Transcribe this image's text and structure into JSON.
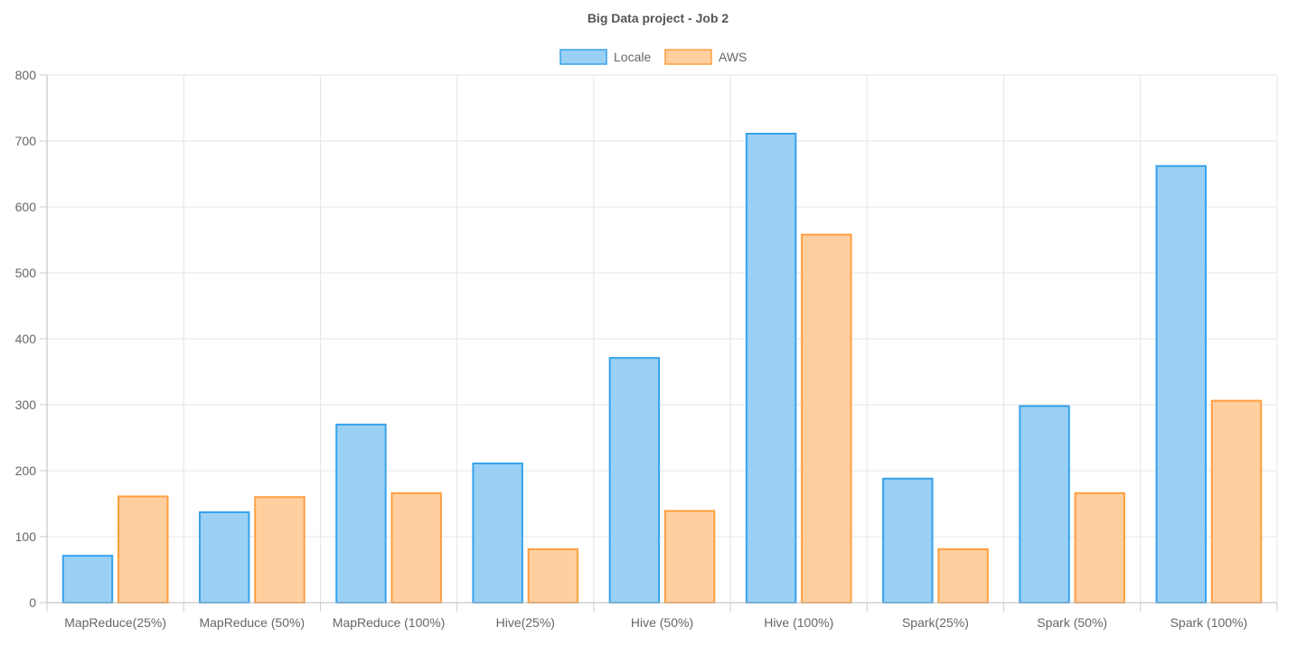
{
  "chart_data": {
    "type": "bar",
    "title": "Big Data project - Job 2",
    "categories": [
      "MapReduce(25%)",
      "MapReduce (50%)",
      "MapReduce (100%)",
      "Hive(25%)",
      "Hive (50%)",
      "Hive (100%)",
      "Spark(25%)",
      "Spark (50%)",
      "Spark (100%)"
    ],
    "series": [
      {
        "name": "Locale",
        "values": [
          71,
          137,
          270,
          211,
          371,
          711,
          188,
          298,
          662
        ],
        "fill": "#9bd0f5",
        "stroke": "#36a2eb"
      },
      {
        "name": "AWS",
        "values": [
          161,
          160,
          166,
          81,
          139,
          558,
          81,
          166,
          306
        ],
        "fill": "#ffcf9f",
        "stroke": "#ff9f40"
      }
    ],
    "ylim": [
      0,
      800
    ],
    "yticks": [
      "0",
      "100",
      "200",
      "300",
      "400",
      "500",
      "600",
      "700",
      "800"
    ],
    "legend_position": "top",
    "grid": true,
    "xlabel": "",
    "ylabel": ""
  }
}
